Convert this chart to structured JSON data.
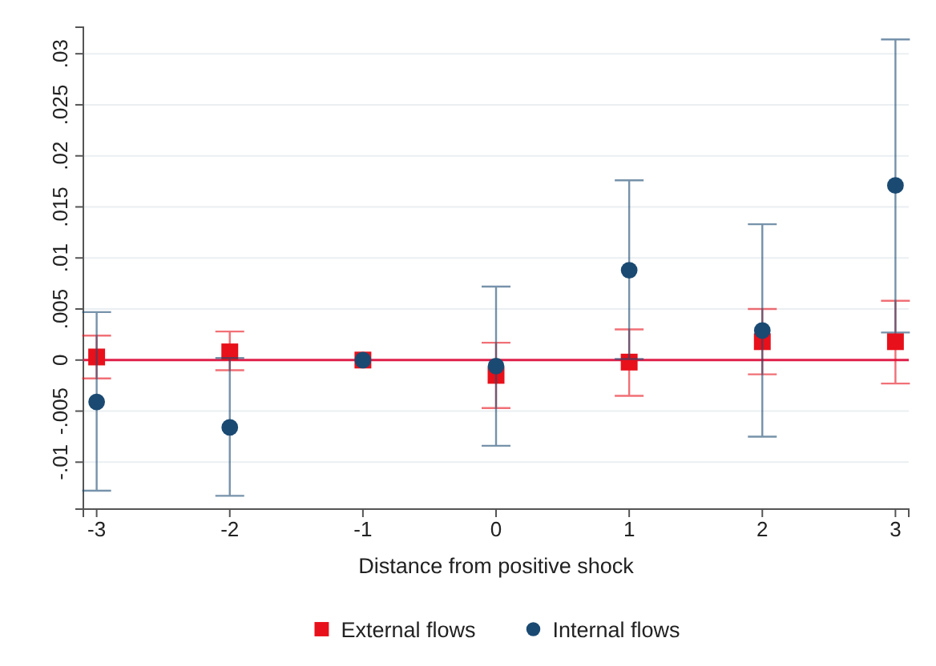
{
  "chart_data": {
    "type": "scatter",
    "xlabel": "Distance from positive shock",
    "x": [
      -3,
      -2,
      -1,
      0,
      1,
      2,
      3
    ],
    "xlim": [
      -3.1,
      3.1
    ],
    "xticks": [
      -3,
      -2,
      -1,
      0,
      1,
      2,
      3
    ],
    "ylim": [
      -0.0146,
      0.0326
    ],
    "yticks": [
      {
        "value": -0.01,
        "label": "-.01"
      },
      {
        "value": -0.005,
        "label": "-.005"
      },
      0,
      {
        "value": 0.005,
        "label": ".005"
      },
      {
        "value": 0.01,
        "label": ".01"
      },
      {
        "value": 0.015,
        "label": ".015"
      },
      {
        "value": 0.02,
        "label": ".02"
      },
      {
        "value": 0.025,
        "label": ".025"
      },
      {
        "value": 0.03,
        "label": ".03"
      }
    ],
    "grid": "y",
    "legend": "bottom",
    "ref_lines": [
      {
        "axis": "y",
        "value": 0,
        "color": "#e0204a"
      }
    ],
    "series": [
      {
        "name": "External flows",
        "color": "#e8101a",
        "marker": "square",
        "values": [
          0.0003,
          0.0008,
          0,
          -0.0015,
          -0.0002,
          0.0018,
          0.0018
        ],
        "errors": [
          [
            -0.0018,
            0.0024
          ],
          [
            -0.001,
            0.0028
          ],
          null,
          [
            -0.0047,
            0.0017
          ],
          [
            -0.0035,
            0.003
          ],
          [
            -0.0014,
            0.005
          ],
          [
            -0.0023,
            0.0058
          ]
        ]
      },
      {
        "name": "Internal flows",
        "color": "#1a4a72",
        "marker": "circle",
        "values": [
          -0.0041,
          -0.0066,
          0,
          -0.0006,
          0.0088,
          0.0029,
          0.0171
        ],
        "errors": [
          [
            -0.0128,
            0.0047
          ],
          [
            -0.0133,
            0.0002
          ],
          null,
          [
            -0.0084,
            0.0072
          ],
          [
            0.0001,
            0.0176
          ],
          [
            -0.0075,
            0.0133
          ],
          [
            0.0027,
            0.0314
          ]
        ]
      }
    ]
  }
}
